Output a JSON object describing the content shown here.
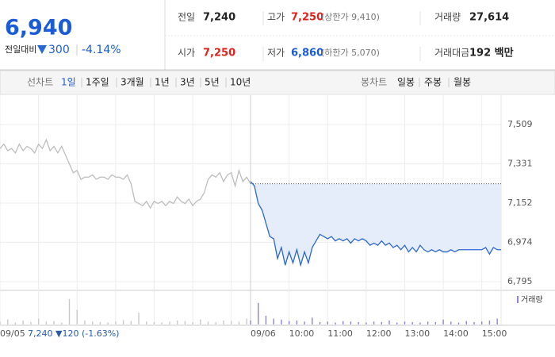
{
  "quote": {
    "price": "6,940",
    "change_label": "전일대비",
    "change": "300",
    "change_rate": "-4.14%",
    "rows": [
      [
        {
          "label": "전일",
          "value": "7,240"
        },
        {
          "label": "고가",
          "value": "7,250",
          "note": "(상한가 9,410)"
        },
        {
          "label": "거래량",
          "value": "27,614"
        }
      ],
      [
        {
          "label": "시가",
          "value": "7,250"
        },
        {
          "label": "저가",
          "value": "6,860",
          "note": "(하한가 5,070)"
        },
        {
          "label": "거래대금",
          "value": "192 백만"
        }
      ]
    ]
  },
  "tabs": {
    "line_label": "선차트",
    "line_items": [
      "1일",
      "1주일",
      "3개월",
      "1년",
      "3년",
      "5년",
      "10년"
    ],
    "candle_label": "봉차트",
    "candle_items": [
      "일봉",
      "주봉",
      "월봉"
    ]
  },
  "chart_data": {
    "type": "line",
    "annotation": "7,240 ▼120 (-1.63%)",
    "baseline": 7240,
    "xlim": [
      0,
      13
    ],
    "xticks": [
      {
        "value": 0,
        "label": "09/05"
      },
      {
        "value": 6.5,
        "label": "09/06"
      },
      {
        "value": 7.5,
        "label": "10:00"
      },
      {
        "value": 8.5,
        "label": "11:00"
      },
      {
        "value": 9.5,
        "label": "12:00"
      },
      {
        "value": 10.5,
        "label": "13:00"
      },
      {
        "value": 11.5,
        "label": "14:00"
      },
      {
        "value": 12.5,
        "label": "15:00"
      }
    ],
    "xminor": [
      1,
      2,
      3,
      4,
      5,
      6
    ],
    "ylim": [
      6760,
      7620
    ],
    "yticks": [
      {
        "value": 7509,
        "label": "7,509"
      },
      {
        "value": 7331,
        "label": "7,331"
      },
      {
        "value": 7152,
        "label": "7,152"
      },
      {
        "value": 6974,
        "label": "6,974"
      },
      {
        "value": 6795,
        "label": "6,795"
      }
    ],
    "grid": true,
    "series": [
      {
        "color": "#bdbdbd",
        "x": [
          0,
          0.1,
          0.2,
          0.3,
          0.4,
          0.5,
          0.6,
          0.7,
          0.8,
          0.9,
          1.0,
          1.1,
          1.2,
          1.3,
          1.4,
          1.5,
          1.6,
          1.7,
          1.8,
          1.9,
          2.0,
          2.1,
          2.2,
          2.3,
          2.4,
          2.5,
          2.6,
          2.7,
          2.8,
          2.9,
          3.0,
          3.1,
          3.2,
          3.3,
          3.4,
          3.5,
          3.6,
          3.7,
          3.8,
          3.9,
          4.0,
          4.1,
          4.2,
          4.3,
          4.4,
          4.5,
          4.6,
          4.7,
          4.8,
          4.9,
          5.0,
          5.1,
          5.2,
          5.3,
          5.4,
          5.5,
          5.6,
          5.7,
          5.8,
          5.9,
          6.0,
          6.1,
          6.2,
          6.3,
          6.4,
          6.5
        ],
        "values": [
          7400,
          7420,
          7390,
          7400,
          7380,
          7420,
          7390,
          7410,
          7400,
          7380,
          7420,
          7400,
          7440,
          7390,
          7410,
          7380,
          7410,
          7370,
          7330,
          7290,
          7300,
          7260,
          7270,
          7270,
          7280,
          7260,
          7270,
          7270,
          7260,
          7280,
          7270,
          7270,
          7260,
          7280,
          7240,
          7160,
          7150,
          7140,
          7160,
          7130,
          7160,
          7150,
          7160,
          7140,
          7160,
          7150,
          7180,
          7160,
          7150,
          7170,
          7140,
          7160,
          7170,
          7200,
          7260,
          7280,
          7270,
          7290,
          7250,
          7280,
          7290,
          7230,
          7300,
          7250,
          7270,
          7240
        ]
      },
      {
        "color": "#2a67d0",
        "fill": "#e4edf9",
        "x": [
          6.5,
          6.6,
          6.7,
          6.8,
          6.9,
          7.0,
          7.1,
          7.2,
          7.3,
          7.4,
          7.5,
          7.6,
          7.7,
          7.8,
          7.9,
          8.0,
          8.1,
          8.2,
          8.3,
          8.4,
          8.5,
          8.6,
          8.7,
          8.8,
          8.9,
          9.0,
          9.1,
          9.2,
          9.3,
          9.4,
          9.5,
          9.6,
          9.7,
          9.8,
          9.9,
          10.0,
          10.1,
          10.2,
          10.3,
          10.4,
          10.5,
          10.6,
          10.7,
          10.8,
          10.9,
          11.0,
          11.1,
          11.2,
          11.3,
          11.4,
          11.5,
          11.6,
          11.7,
          11.8,
          11.9,
          12.0,
          12.1,
          12.2,
          12.3,
          12.4,
          12.5,
          12.6,
          12.7,
          12.8,
          12.9,
          13.0
        ],
        "values": [
          7250,
          7230,
          7150,
          7120,
          7060,
          7000,
          6990,
          6900,
          6950,
          6870,
          6930,
          6880,
          6940,
          6870,
          6930,
          6880,
          6950,
          6980,
          7010,
          7000,
          6990,
          7000,
          6980,
          6990,
          6980,
          6990,
          6970,
          6990,
          6980,
          6990,
          6980,
          6960,
          6970,
          6960,
          6980,
          6960,
          6970,
          6950,
          6960,
          6940,
          6960,
          6930,
          6950,
          6930,
          6960,
          6940,
          6930,
          6940,
          6930,
          6940,
          6930,
          6930,
          6940,
          6930,
          6940,
          6940,
          6940,
          6940,
          6940,
          6940,
          6940,
          6950,
          6920,
          6950,
          6940,
          6940
        ]
      }
    ],
    "volume": {
      "label": "거래량",
      "ylim": [
        0,
        3000
      ],
      "series": [
        {
          "color": "#c9c9c9",
          "x": [
            0,
            0.2,
            0.4,
            0.6,
            0.8,
            1.0,
            1.2,
            1.4,
            1.6,
            1.8,
            2.0,
            2.2,
            2.4,
            2.6,
            2.8,
            3.0,
            3.2,
            3.4,
            3.6,
            3.8,
            4.0,
            4.2,
            4.4,
            4.6,
            4.8,
            5.0,
            5.2,
            5.4,
            5.6,
            5.8,
            6.0,
            6.2,
            6.4
          ],
          "values": [
            300,
            500,
            200,
            400,
            250,
            600,
            300,
            350,
            200,
            2600,
            1500,
            400,
            300,
            250,
            200,
            300,
            450,
            350,
            1200,
            300,
            250,
            200,
            300,
            400,
            350,
            250,
            500,
            300,
            250,
            400,
            350,
            300,
            600
          ]
        },
        {
          "color": "#8c84d6",
          "x": [
            6.5,
            6.7,
            6.9,
            7.1,
            7.3,
            7.5,
            7.7,
            7.9,
            8.1,
            8.3,
            8.5,
            8.7,
            8.9,
            9.1,
            9.3,
            9.5,
            9.7,
            9.9,
            10.1,
            10.3,
            10.5,
            10.7,
            10.9,
            11.1,
            11.3,
            11.5,
            11.7,
            11.9,
            12.1,
            12.3,
            12.5,
            12.7,
            12.9
          ],
          "values": [
            400,
            2200,
            900,
            600,
            500,
            350,
            400,
            300,
            700,
            250,
            300,
            200,
            350,
            300,
            250,
            200,
            300,
            250,
            400,
            200,
            300,
            250,
            200,
            300,
            250,
            500,
            300,
            200,
            350,
            250,
            300,
            400,
            600
          ]
        }
      ]
    }
  }
}
